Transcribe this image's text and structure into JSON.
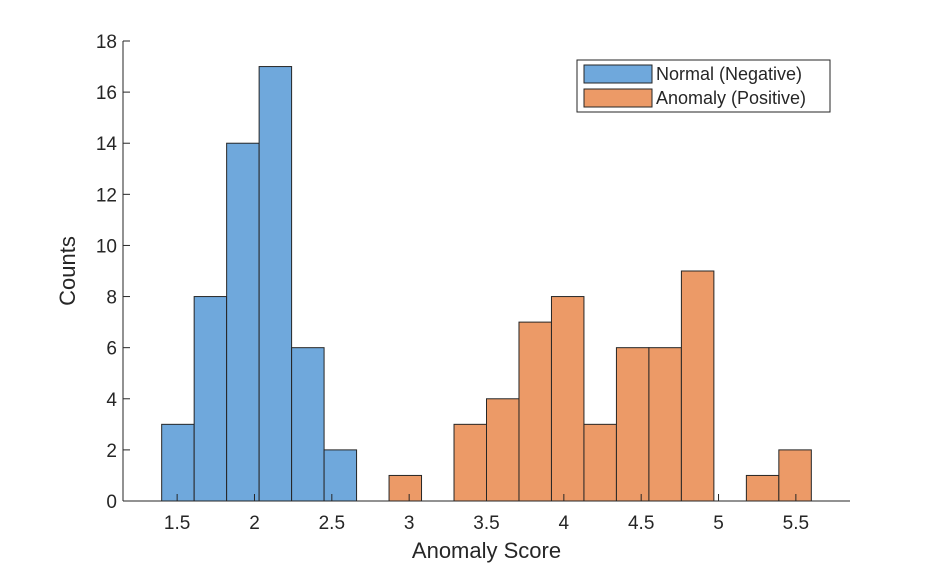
{
  "chart_data": {
    "type": "bar",
    "xlabel": "Anomaly Score",
    "ylabel": "Counts",
    "xlim": [
      1.15,
      5.85
    ],
    "ylim": [
      0,
      18
    ],
    "xticks": [
      1.5,
      2,
      2.5,
      3,
      3.5,
      4,
      4.5,
      5,
      5.5
    ],
    "yticks": [
      0,
      2,
      4,
      6,
      8,
      10,
      12,
      14,
      16,
      18
    ],
    "bin_width": 0.21,
    "grid": false,
    "legend_position": "top-right",
    "series": [
      {
        "name": "Normal (Negative)",
        "color": "#6fa8dc",
        "bins": [
          {
            "x0": 1.4,
            "x1": 1.61,
            "count": 3
          },
          {
            "x0": 1.61,
            "x1": 1.82,
            "count": 8
          },
          {
            "x0": 1.82,
            "x1": 2.03,
            "count": 14
          },
          {
            "x0": 2.03,
            "x1": 2.24,
            "count": 17
          },
          {
            "x0": 2.24,
            "x1": 2.45,
            "count": 6
          },
          {
            "x0": 2.45,
            "x1": 2.66,
            "count": 2
          }
        ]
      },
      {
        "name": "Anomaly (Positive)",
        "color": "#ec9a67",
        "bins": [
          {
            "x0": 2.87,
            "x1": 3.08,
            "count": 1
          },
          {
            "x0": 3.29,
            "x1": 3.5,
            "count": 3
          },
          {
            "x0": 3.5,
            "x1": 3.71,
            "count": 4
          },
          {
            "x0": 3.71,
            "x1": 3.92,
            "count": 7
          },
          {
            "x0": 3.92,
            "x1": 4.13,
            "count": 8
          },
          {
            "x0": 4.13,
            "x1": 4.34,
            "count": 3
          },
          {
            "x0": 4.34,
            "x1": 4.55,
            "count": 6
          },
          {
            "x0": 4.55,
            "x1": 4.76,
            "count": 6
          },
          {
            "x0": 4.76,
            "x1": 4.97,
            "count": 9
          },
          {
            "x0": 5.18,
            "x1": 5.39,
            "count": 1
          },
          {
            "x0": 5.39,
            "x1": 5.6,
            "count": 2
          }
        ]
      }
    ]
  }
}
